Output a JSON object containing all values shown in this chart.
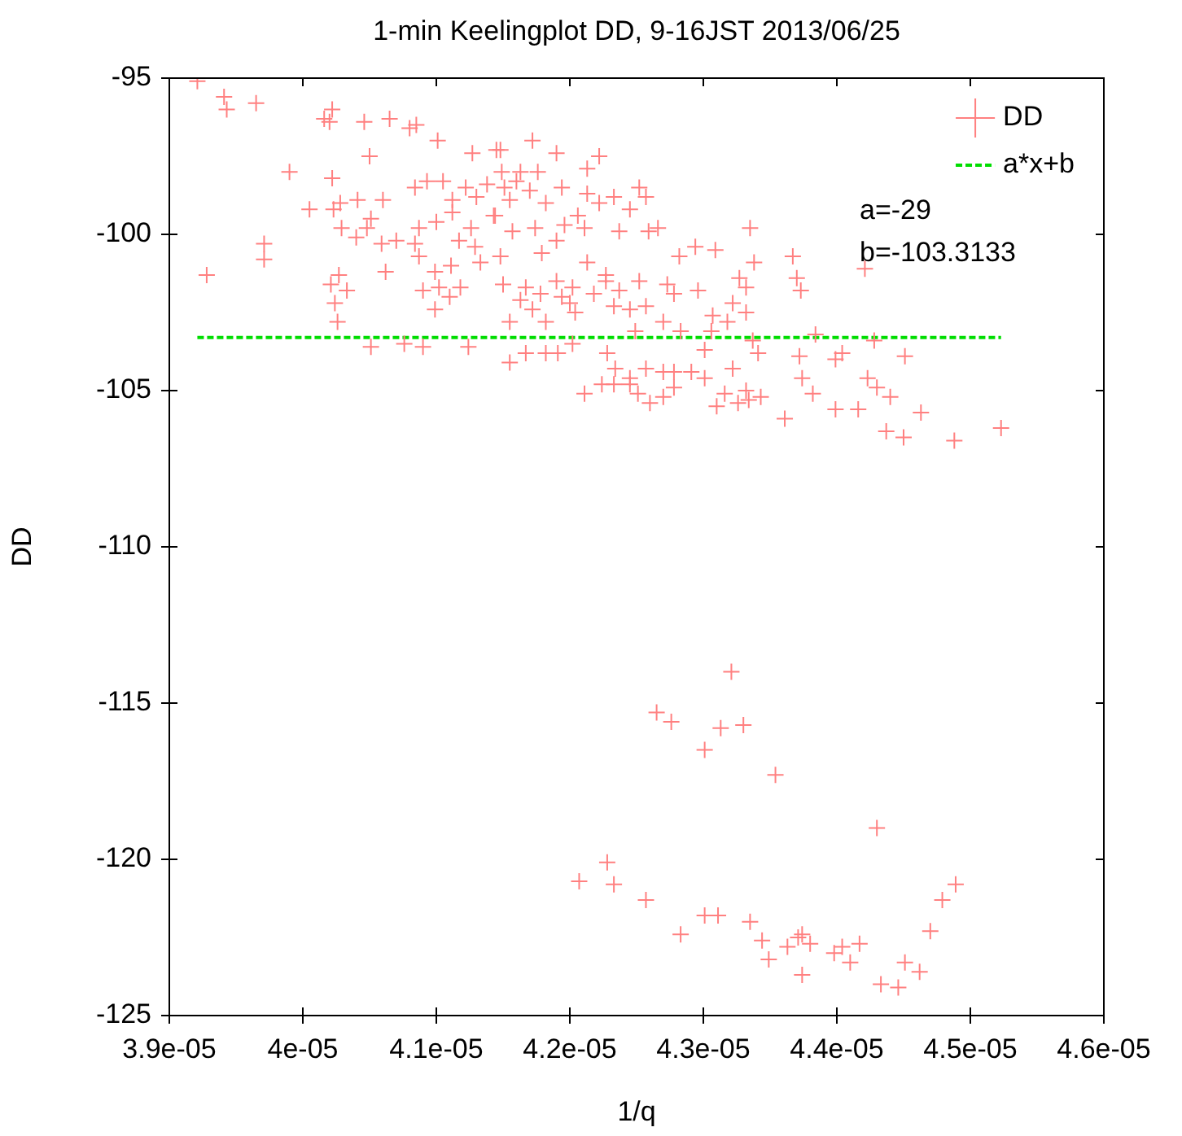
{
  "chart_data": {
    "type": "scatter",
    "title": "1-min Keelingplot DD, 9-16JST 2013/06/25",
    "xlabel": "1/q",
    "ylabel": "DD",
    "xlim": [
      3.9e-05,
      4.6e-05
    ],
    "xticks": [
      {
        "value": 3.9e-05,
        "label": "3.9e-05"
      },
      {
        "value": 4e-05,
        "label": "4e-05"
      },
      {
        "value": 4.1e-05,
        "label": "4.1e-05"
      },
      {
        "value": 4.2e-05,
        "label": "4.2e-05"
      },
      {
        "value": 4.3e-05,
        "label": "4.3e-05"
      },
      {
        "value": 4.4e-05,
        "label": "4.4e-05"
      },
      {
        "value": 4.5e-05,
        "label": "4.5e-05"
      },
      {
        "value": 4.6e-05,
        "label": "4.6e-05"
      }
    ],
    "ylim": [
      -125,
      -95
    ],
    "yticks": [
      -125,
      -120,
      -115,
      -110,
      -105,
      -100,
      -95
    ],
    "grid": false,
    "legend": "top right",
    "annotations": [
      "a=-29",
      "b=-103.3133"
    ],
    "series": [
      {
        "name": "DD",
        "color": "#ff8080",
        "marker": "cross",
        "x": [
          3.921e-05,
          3.941e-05,
          3.943e-05,
          3.965e-05,
          3.928e-05,
          3.99e-05,
          4.005e-05,
          3.971e-05,
          3.971e-05,
          4.016e-05,
          4.022e-05,
          4.02e-05,
          4.046e-05,
          4.065e-05,
          4.08e-05,
          4.085e-05,
          4.05e-05,
          4.022e-05,
          4.023e-05,
          4.028e-05,
          4.041e-05,
          4.06e-05,
          4.051e-05,
          4.029e-05,
          4.04e-05,
          4.048e-05,
          4.059e-05,
          4.07e-05,
          4.062e-05,
          4.027e-05,
          4.021e-05,
          4.033e-05,
          4.024e-05,
          4.026e-05,
          4.101e-05,
          4.093e-05,
          4.105e-05,
          4.084e-05,
          4.112e-05,
          4.122e-05,
          4.112e-05,
          4.13e-05,
          4.138e-05,
          4.143e-05,
          4.087e-05,
          4.1e-05,
          4.084e-05,
          4.087e-05,
          4.099e-05,
          4.111e-05,
          4.117e-05,
          4.126e-05,
          4.129e-05,
          4.133e-05,
          4.118e-05,
          4.102e-05,
          4.09e-05,
          4.11e-05,
          4.099e-05,
          4.127e-05,
          4.145e-05,
          4.051e-05,
          4.076e-05,
          4.09e-05,
          4.124e-05,
          4.172e-05,
          4.148e-05,
          4.19e-05,
          4.222e-05,
          4.149e-05,
          4.163e-05,
          4.176e-05,
          4.213e-05,
          4.16e-05,
          4.151e-05,
          4.17e-05,
          4.194e-05,
          4.213e-05,
          4.233e-05,
          4.252e-05,
          4.257e-05,
          4.245e-05,
          4.182e-05,
          4.155e-05,
          4.144e-05,
          4.206e-05,
          4.222e-05,
          4.196e-05,
          4.211e-05,
          4.174e-05,
          4.157e-05,
          4.19e-05,
          4.237e-05,
          4.259e-05,
          4.266e-05,
          4.335e-05,
          4.282e-05,
          4.294e-05,
          4.309e-05,
          4.338e-05,
          4.367e-05,
          4.37e-05,
          4.148e-05,
          4.179e-05,
          4.213e-05,
          4.227e-05,
          4.15e-05,
          4.167e-05,
          4.19e-05,
          4.202e-05,
          4.227e-05,
          4.252e-05,
          4.237e-05,
          4.273e-05,
          4.278e-05,
          4.296e-05,
          4.327e-05,
          4.332e-05,
          4.178e-05,
          4.194e-05,
          4.218e-05,
          4.233e-05,
          4.245e-05,
          4.257e-05,
          4.163e-05,
          4.2e-05,
          4.182e-05,
          4.155e-05,
          4.172e-05,
          4.204e-05,
          4.27e-05,
          4.322e-05,
          4.307e-05,
          4.318e-05,
          4.332e-05,
          4.373e-05,
          4.249e-05,
          4.283e-05,
          4.306e-05,
          4.337e-05,
          4.372e-05,
          4.167e-05,
          4.182e-05,
          4.191e-05,
          4.202e-05,
          4.155e-05,
          4.234e-05,
          4.257e-05,
          4.278e-05,
          4.291e-05,
          4.322e-05,
          4.245e-05,
          4.301e-05,
          4.211e-05,
          4.228e-05,
          4.224e-05,
          4.233e-05,
          4.245e-05,
          4.251e-05,
          4.26e-05,
          4.27e-05,
          4.27e-05,
          4.278e-05,
          4.301e-05,
          4.316e-05,
          4.31e-05,
          4.326e-05,
          4.332e-05,
          4.334e-05,
          4.343e-05,
          4.341e-05,
          4.361e-05,
          4.374e-05,
          4.382e-05,
          4.399e-05,
          4.399e-05,
          4.404e-05,
          4.416e-05,
          4.423e-05,
          4.43e-05,
          4.44e-05,
          4.437e-05,
          4.451e-05,
          4.45e-05,
          4.463e-05,
          4.488e-05,
          4.384e-05,
          4.428e-05,
          4.421e-05,
          4.523e-05,
          4.321e-05,
          4.265e-05,
          4.276e-05,
          4.313e-05,
          4.33e-05,
          4.301e-05,
          4.354e-05,
          4.43e-05,
          4.228e-05,
          4.207e-05,
          4.233e-05,
          4.257e-05,
          4.283e-05,
          4.301e-05,
          4.311e-05,
          4.335e-05,
          4.344e-05,
          4.349e-05,
          4.363e-05,
          4.371e-05,
          4.374e-05,
          4.38e-05,
          4.374e-05,
          4.398e-05,
          4.404e-05,
          4.41e-05,
          4.417e-05,
          4.433e-05,
          4.446e-05,
          4.451e-05,
          4.462e-05,
          4.47e-05,
          4.479e-05,
          4.489e-05
        ],
        "values": [
          -95.1,
          -95.6,
          -96.0,
          -95.8,
          -101.3,
          -98.0,
          -99.2,
          -100.3,
          -100.8,
          -96.3,
          -96.0,
          -96.4,
          -96.4,
          -96.3,
          -96.6,
          -96.5,
          -97.5,
          -98.2,
          -99.2,
          -99.0,
          -98.9,
          -98.9,
          -99.5,
          -99.8,
          -100.1,
          -99.8,
          -100.3,
          -100.2,
          -101.2,
          -101.3,
          -101.6,
          -101.8,
          -102.2,
          -102.8,
          -97.0,
          -98.3,
          -98.3,
          -98.5,
          -98.9,
          -98.5,
          -99.3,
          -98.8,
          -98.4,
          -99.4,
          -99.8,
          -99.6,
          -100.3,
          -100.7,
          -101.2,
          -101.0,
          -100.2,
          -99.8,
          -100.4,
          -100.9,
          -101.7,
          -101.7,
          -101.8,
          -102.0,
          -102.4,
          -97.4,
          -97.3,
          -103.6,
          -103.5,
          -103.6,
          -103.6,
          -97.0,
          -97.3,
          -97.4,
          -97.5,
          -98.0,
          -98.0,
          -98.0,
          -97.9,
          -98.3,
          -98.5,
          -98.6,
          -98.5,
          -98.7,
          -98.8,
          -98.5,
          -98.8,
          -99.2,
          -99.0,
          -98.9,
          -99.4,
          -99.4,
          -99.0,
          -99.7,
          -99.8,
          -99.8,
          -99.9,
          -100.2,
          -99.9,
          -99.9,
          -99.8,
          -99.8,
          -100.7,
          -100.4,
          -100.5,
          -100.9,
          -100.7,
          -101.4,
          -100.7,
          -100.6,
          -100.9,
          -101.3,
          -101.6,
          -101.7,
          -101.5,
          -101.7,
          -101.5,
          -101.5,
          -101.8,
          -101.6,
          -101.9,
          -101.8,
          -101.4,
          -101.7,
          -101.9,
          -102.0,
          -101.9,
          -102.3,
          -102.4,
          -102.3,
          -102.1,
          -102.2,
          -102.8,
          -102.8,
          -102.4,
          -102.5,
          -102.8,
          -102.2,
          -102.6,
          -102.8,
          -102.5,
          -101.8,
          -103.1,
          -103.1,
          -103.1,
          -103.4,
          -103.9,
          -103.8,
          -103.8,
          -103.8,
          -103.5,
          -104.1,
          -104.3,
          -104.3,
          -104.4,
          -104.4,
          -104.3,
          -104.6,
          -104.6,
          -105.1,
          -103.8,
          -104.8,
          -104.8,
          -104.8,
          -105.1,
          -105.4,
          -105.2,
          -104.4,
          -104.9,
          -103.7,
          -105.1,
          -105.5,
          -105.4,
          -105.0,
          -105.3,
          -105.2,
          -103.8,
          -105.9,
          -104.6,
          -105.1,
          -105.6,
          -104.0,
          -103.8,
          -105.6,
          -104.6,
          -104.9,
          -105.2,
          -106.3,
          -103.9,
          -106.5,
          -105.7,
          -106.6,
          -103.2,
          -103.4,
          -101.1,
          -106.2,
          -114.0,
          -115.3,
          -115.6,
          -115.8,
          -115.7,
          -116.5,
          -117.3,
          -119.0,
          -120.1,
          -120.7,
          -120.8,
          -121.3,
          -122.4,
          -121.8,
          -121.8,
          -122.0,
          -122.6,
          -123.2,
          -122.8,
          -122.5,
          -122.4,
          -122.7,
          -123.7,
          -123.0,
          -122.8,
          -123.3,
          -122.7,
          -124.0,
          -124.1,
          -123.3,
          -123.6,
          -122.3,
          -121.3,
          -120.8
        ]
      },
      {
        "name": "a*x+b",
        "type": "line",
        "color": "#00dd00",
        "line_style": "dashed",
        "x": [
          3.921e-05,
          4.523e-05
        ],
        "values": [
          -103.3,
          -103.3
        ]
      }
    ]
  }
}
